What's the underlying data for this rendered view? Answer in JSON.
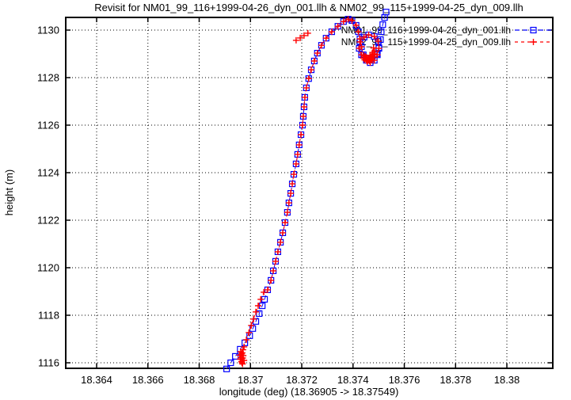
{
  "window": {
    "title": "Revisit for NM01_99_116+1999-04-26_dyn_001.llh & NM02_99_115+1999-04-25_dyn_009.llh"
  },
  "chart_data": {
    "type": "line",
    "title": "Revisit for NM01_99_116+1999-04-26_dyn_001.llh & NM02_99_115+1999-04-25_dyn_009.llh",
    "xlabel": "longitude (deg) (18.36905 -> 18.37549)",
    "ylabel": "height (m)",
    "grid": true,
    "legend_position": "top-right",
    "x_range": [
      18.362795,
      18.381791
    ],
    "y_range": [
      1115.767,
      1130.533
    ],
    "x_ticks": [
      {
        "v": 18.364,
        "label": "18.364"
      },
      {
        "v": 18.366,
        "label": "18.366"
      },
      {
        "v": 18.368,
        "label": "18.368"
      },
      {
        "v": 18.37,
        "label": "18.37"
      },
      {
        "v": 18.372,
        "label": "18.372"
      },
      {
        "v": 18.374,
        "label": "18.374"
      },
      {
        "v": 18.376,
        "label": "18.376"
      },
      {
        "v": 18.378,
        "label": "18.378"
      },
      {
        "v": 18.38,
        "label": "18.38"
      }
    ],
    "y_ticks": [
      {
        "v": 1116,
        "label": "1116"
      },
      {
        "v": 1118,
        "label": "1118"
      },
      {
        "v": 1120,
        "label": "1120"
      },
      {
        "v": 1122,
        "label": "1122"
      },
      {
        "v": 1124,
        "label": "1124"
      },
      {
        "v": 1126,
        "label": "1126"
      },
      {
        "v": 1128,
        "label": "1128"
      },
      {
        "v": 1130,
        "label": "1130"
      }
    ],
    "series": [
      {
        "name": "NM01_99_116+1999-04-26_dyn_001.llh",
        "color": "#0000ff",
        "marker": "square",
        "dash": "6,4",
        "points": [
          [
            18.36907,
            1115.74
          ],
          [
            18.36923,
            1116.0
          ],
          [
            18.36941,
            1116.27
          ],
          [
            18.3696,
            1116.57
          ],
          [
            18.36978,
            1116.84
          ],
          [
            18.36997,
            1117.14
          ],
          [
            18.37009,
            1117.44
          ],
          [
            18.37021,
            1117.74
          ],
          [
            18.37034,
            1118.07
          ],
          [
            18.37046,
            1118.4
          ],
          [
            18.37055,
            1118.67
          ],
          [
            18.37067,
            1119.07
          ],
          [
            18.3708,
            1119.47
          ],
          [
            18.37089,
            1119.87
          ],
          [
            18.37098,
            1120.27
          ],
          [
            18.37107,
            1120.67
          ],
          [
            18.37117,
            1121.07
          ],
          [
            18.37126,
            1121.47
          ],
          [
            18.37135,
            1121.9
          ],
          [
            18.37144,
            1122.33
          ],
          [
            18.3715,
            1122.73
          ],
          [
            18.37157,
            1123.13
          ],
          [
            18.37163,
            1123.53
          ],
          [
            18.37169,
            1123.93
          ],
          [
            18.37178,
            1124.37
          ],
          [
            18.37184,
            1124.77
          ],
          [
            18.3719,
            1125.17
          ],
          [
            18.37197,
            1125.6
          ],
          [
            18.37203,
            1126.0
          ],
          [
            18.37206,
            1126.37
          ],
          [
            18.37209,
            1126.77
          ],
          [
            18.37212,
            1127.17
          ],
          [
            18.37218,
            1127.57
          ],
          [
            18.37227,
            1127.96
          ],
          [
            18.37237,
            1128.33
          ],
          [
            18.37249,
            1128.7
          ],
          [
            18.37261,
            1129.03
          ],
          [
            18.37277,
            1129.36
          ],
          [
            18.37295,
            1129.66
          ],
          [
            18.37317,
            1129.93
          ],
          [
            18.37341,
            1130.16
          ],
          [
            18.37363,
            1130.36
          ],
          [
            18.37381,
            1130.46
          ],
          [
            18.37396,
            1130.4
          ],
          [
            18.37412,
            1130.2
          ],
          [
            18.37421,
            1129.93
          ],
          [
            18.37427,
            1129.63
          ],
          [
            18.37433,
            1129.3
          ],
          [
            18.3744,
            1128.96
          ],
          [
            18.37452,
            1128.73
          ],
          [
            18.37467,
            1128.63
          ],
          [
            18.37483,
            1128.73
          ],
          [
            18.37495,
            1128.96
          ],
          [
            18.37501,
            1129.23
          ],
          [
            18.37498,
            1129.53
          ],
          [
            18.37483,
            1129.73
          ],
          [
            18.37461,
            1129.8
          ],
          [
            18.37443,
            1129.7
          ],
          [
            18.37427,
            1129.5
          ],
          [
            18.37424,
            1129.23
          ],
          [
            18.37433,
            1128.96
          ],
          [
            18.37452,
            1128.8
          ],
          [
            18.37473,
            1128.8
          ],
          [
            18.37492,
            1129.0
          ],
          [
            18.37501,
            1129.26
          ],
          [
            18.37507,
            1129.6
          ],
          [
            18.3751,
            1129.93
          ],
          [
            18.37516,
            1130.23
          ],
          [
            18.37523,
            1130.53
          ],
          [
            18.37529,
            1130.76
          ]
        ],
        "marker_only_points": []
      },
      {
        "name": "NM02_99_115+1999-04-25_dyn_009.llh",
        "color": "#ff0000",
        "marker": "plus",
        "dash": "4,4",
        "points": [
          [
            18.36966,
            1116.37
          ],
          [
            18.36975,
            1116.67
          ],
          [
            18.36984,
            1116.97
          ],
          [
            18.36994,
            1117.27
          ],
          [
            18.37003,
            1117.57
          ],
          [
            18.37012,
            1117.84
          ],
          [
            18.37021,
            1118.14
          ],
          [
            18.3703,
            1118.4
          ],
          [
            18.3704,
            1118.67
          ],
          [
            18.37052,
            1118.97
          ],
          [
            18.37067,
            1119.07
          ],
          [
            18.3708,
            1119.47
          ],
          [
            18.37089,
            1119.87
          ],
          [
            18.37098,
            1120.27
          ],
          [
            18.37107,
            1120.67
          ],
          [
            18.37117,
            1121.07
          ],
          [
            18.37126,
            1121.47
          ],
          [
            18.37135,
            1121.9
          ],
          [
            18.37144,
            1122.33
          ],
          [
            18.3715,
            1122.73
          ],
          [
            18.37157,
            1123.13
          ],
          [
            18.37163,
            1123.53
          ],
          [
            18.37169,
            1123.93
          ],
          [
            18.37178,
            1124.37
          ],
          [
            18.37184,
            1124.77
          ],
          [
            18.3719,
            1125.17
          ],
          [
            18.37197,
            1125.6
          ],
          [
            18.37203,
            1126.0
          ],
          [
            18.37206,
            1126.37
          ],
          [
            18.37209,
            1126.77
          ],
          [
            18.37212,
            1127.17
          ],
          [
            18.37218,
            1127.57
          ],
          [
            18.37227,
            1127.96
          ],
          [
            18.37237,
            1128.33
          ],
          [
            18.37249,
            1128.7
          ],
          [
            18.37261,
            1129.03
          ],
          [
            18.37277,
            1129.36
          ],
          [
            18.37295,
            1129.66
          ],
          [
            18.37317,
            1129.93
          ],
          [
            18.37341,
            1130.16
          ],
          [
            18.37363,
            1130.36
          ],
          [
            18.37381,
            1130.46
          ],
          [
            18.37396,
            1130.4
          ],
          [
            18.37412,
            1130.2
          ],
          [
            18.37421,
            1129.93
          ],
          [
            18.37427,
            1129.63
          ],
          [
            18.37433,
            1129.3
          ],
          [
            18.3744,
            1128.96
          ],
          [
            18.37452,
            1128.73
          ],
          [
            18.37467,
            1128.63
          ],
          [
            18.37483,
            1128.73
          ],
          [
            18.37495,
            1128.96
          ],
          [
            18.37501,
            1129.23
          ],
          [
            18.37498,
            1129.53
          ],
          [
            18.37483,
            1129.73
          ],
          [
            18.37461,
            1129.8
          ],
          [
            18.37443,
            1129.7
          ],
          [
            18.37427,
            1129.5
          ],
          [
            18.37424,
            1129.23
          ],
          [
            18.37433,
            1128.96
          ],
          [
            18.37452,
            1128.8
          ],
          [
            18.37473,
            1128.8
          ]
        ],
        "marker_only_points": [
          [
            18.3696,
            1116.15
          ],
          [
            18.36965,
            1116.05
          ],
          [
            18.3697,
            1116.2
          ],
          [
            18.36958,
            1116.32
          ],
          [
            18.36968,
            1116.42
          ],
          [
            18.36972,
            1116.3
          ],
          [
            18.36963,
            1116.22
          ],
          [
            18.36975,
            1116.1
          ],
          [
            18.36967,
            1116.0
          ],
          [
            18.36962,
            1116.47
          ],
          [
            18.36971,
            1116.55
          ],
          [
            18.36969,
            1115.95
          ],
          [
            18.37445,
            1128.75
          ],
          [
            18.37455,
            1128.68
          ],
          [
            18.37465,
            1128.7
          ],
          [
            18.37472,
            1128.78
          ],
          [
            18.37478,
            1128.88
          ],
          [
            18.37482,
            1129.0
          ],
          [
            18.37484,
            1129.12
          ],
          [
            18.3748,
            1129.25
          ],
          [
            18.3745,
            1128.8
          ],
          [
            18.3746,
            1128.74
          ],
          [
            18.37468,
            1128.84
          ],
          [
            18.37474,
            1128.94
          ],
          [
            18.3744,
            1128.82
          ],
          [
            18.37476,
            1129.06
          ],
          [
            18.37458,
            1128.72
          ],
          [
            18.37463,
            1128.78
          ],
          [
            18.3747,
            1128.88
          ],
          [
            18.37466,
            1128.94
          ],
          [
            18.37453,
            1128.85
          ],
          [
            18.37447,
            1128.9
          ],
          [
            18.37178,
            1129.57
          ],
          [
            18.37194,
            1129.67
          ],
          [
            18.37209,
            1129.77
          ],
          [
            18.37224,
            1129.87
          ]
        ]
      }
    ]
  }
}
